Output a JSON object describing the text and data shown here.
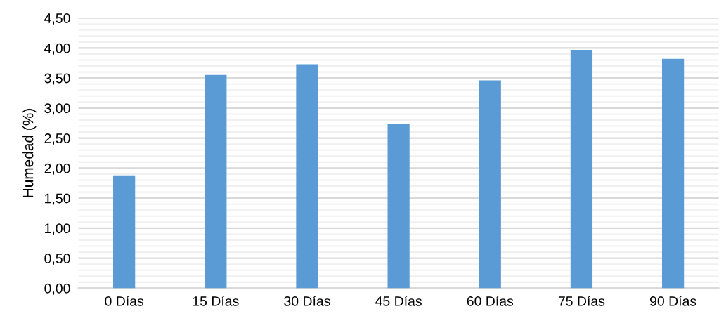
{
  "chart_data": {
    "type": "bar",
    "ylabel": "Humedad (%)",
    "categories": [
      "0 Días",
      "15 Días",
      "30 Días",
      "45 Días",
      "60 Días",
      "75 Días",
      "90 Días"
    ],
    "values": [
      1.88,
      3.55,
      3.73,
      2.74,
      3.46,
      3.97,
      3.82
    ],
    "color": "#5b9bd5",
    "ylim": [
      0,
      4.5
    ],
    "yticks": [
      {
        "value": 0,
        "label": "0,00"
      },
      {
        "value": 0.5,
        "label": "0,50"
      },
      {
        "value": 1,
        "label": "1,00"
      },
      {
        "value": 1.5,
        "label": "1,50"
      },
      {
        "value": 2,
        "label": "2,00"
      },
      {
        "value": 2.5,
        "label": "2,50"
      },
      {
        "value": 3,
        "label": "3,00"
      },
      {
        "value": 3.5,
        "label": "3,50"
      },
      {
        "value": 4,
        "label": "4,00"
      },
      {
        "value": 4.5,
        "label": "4,50"
      }
    ],
    "grid": "y"
  }
}
